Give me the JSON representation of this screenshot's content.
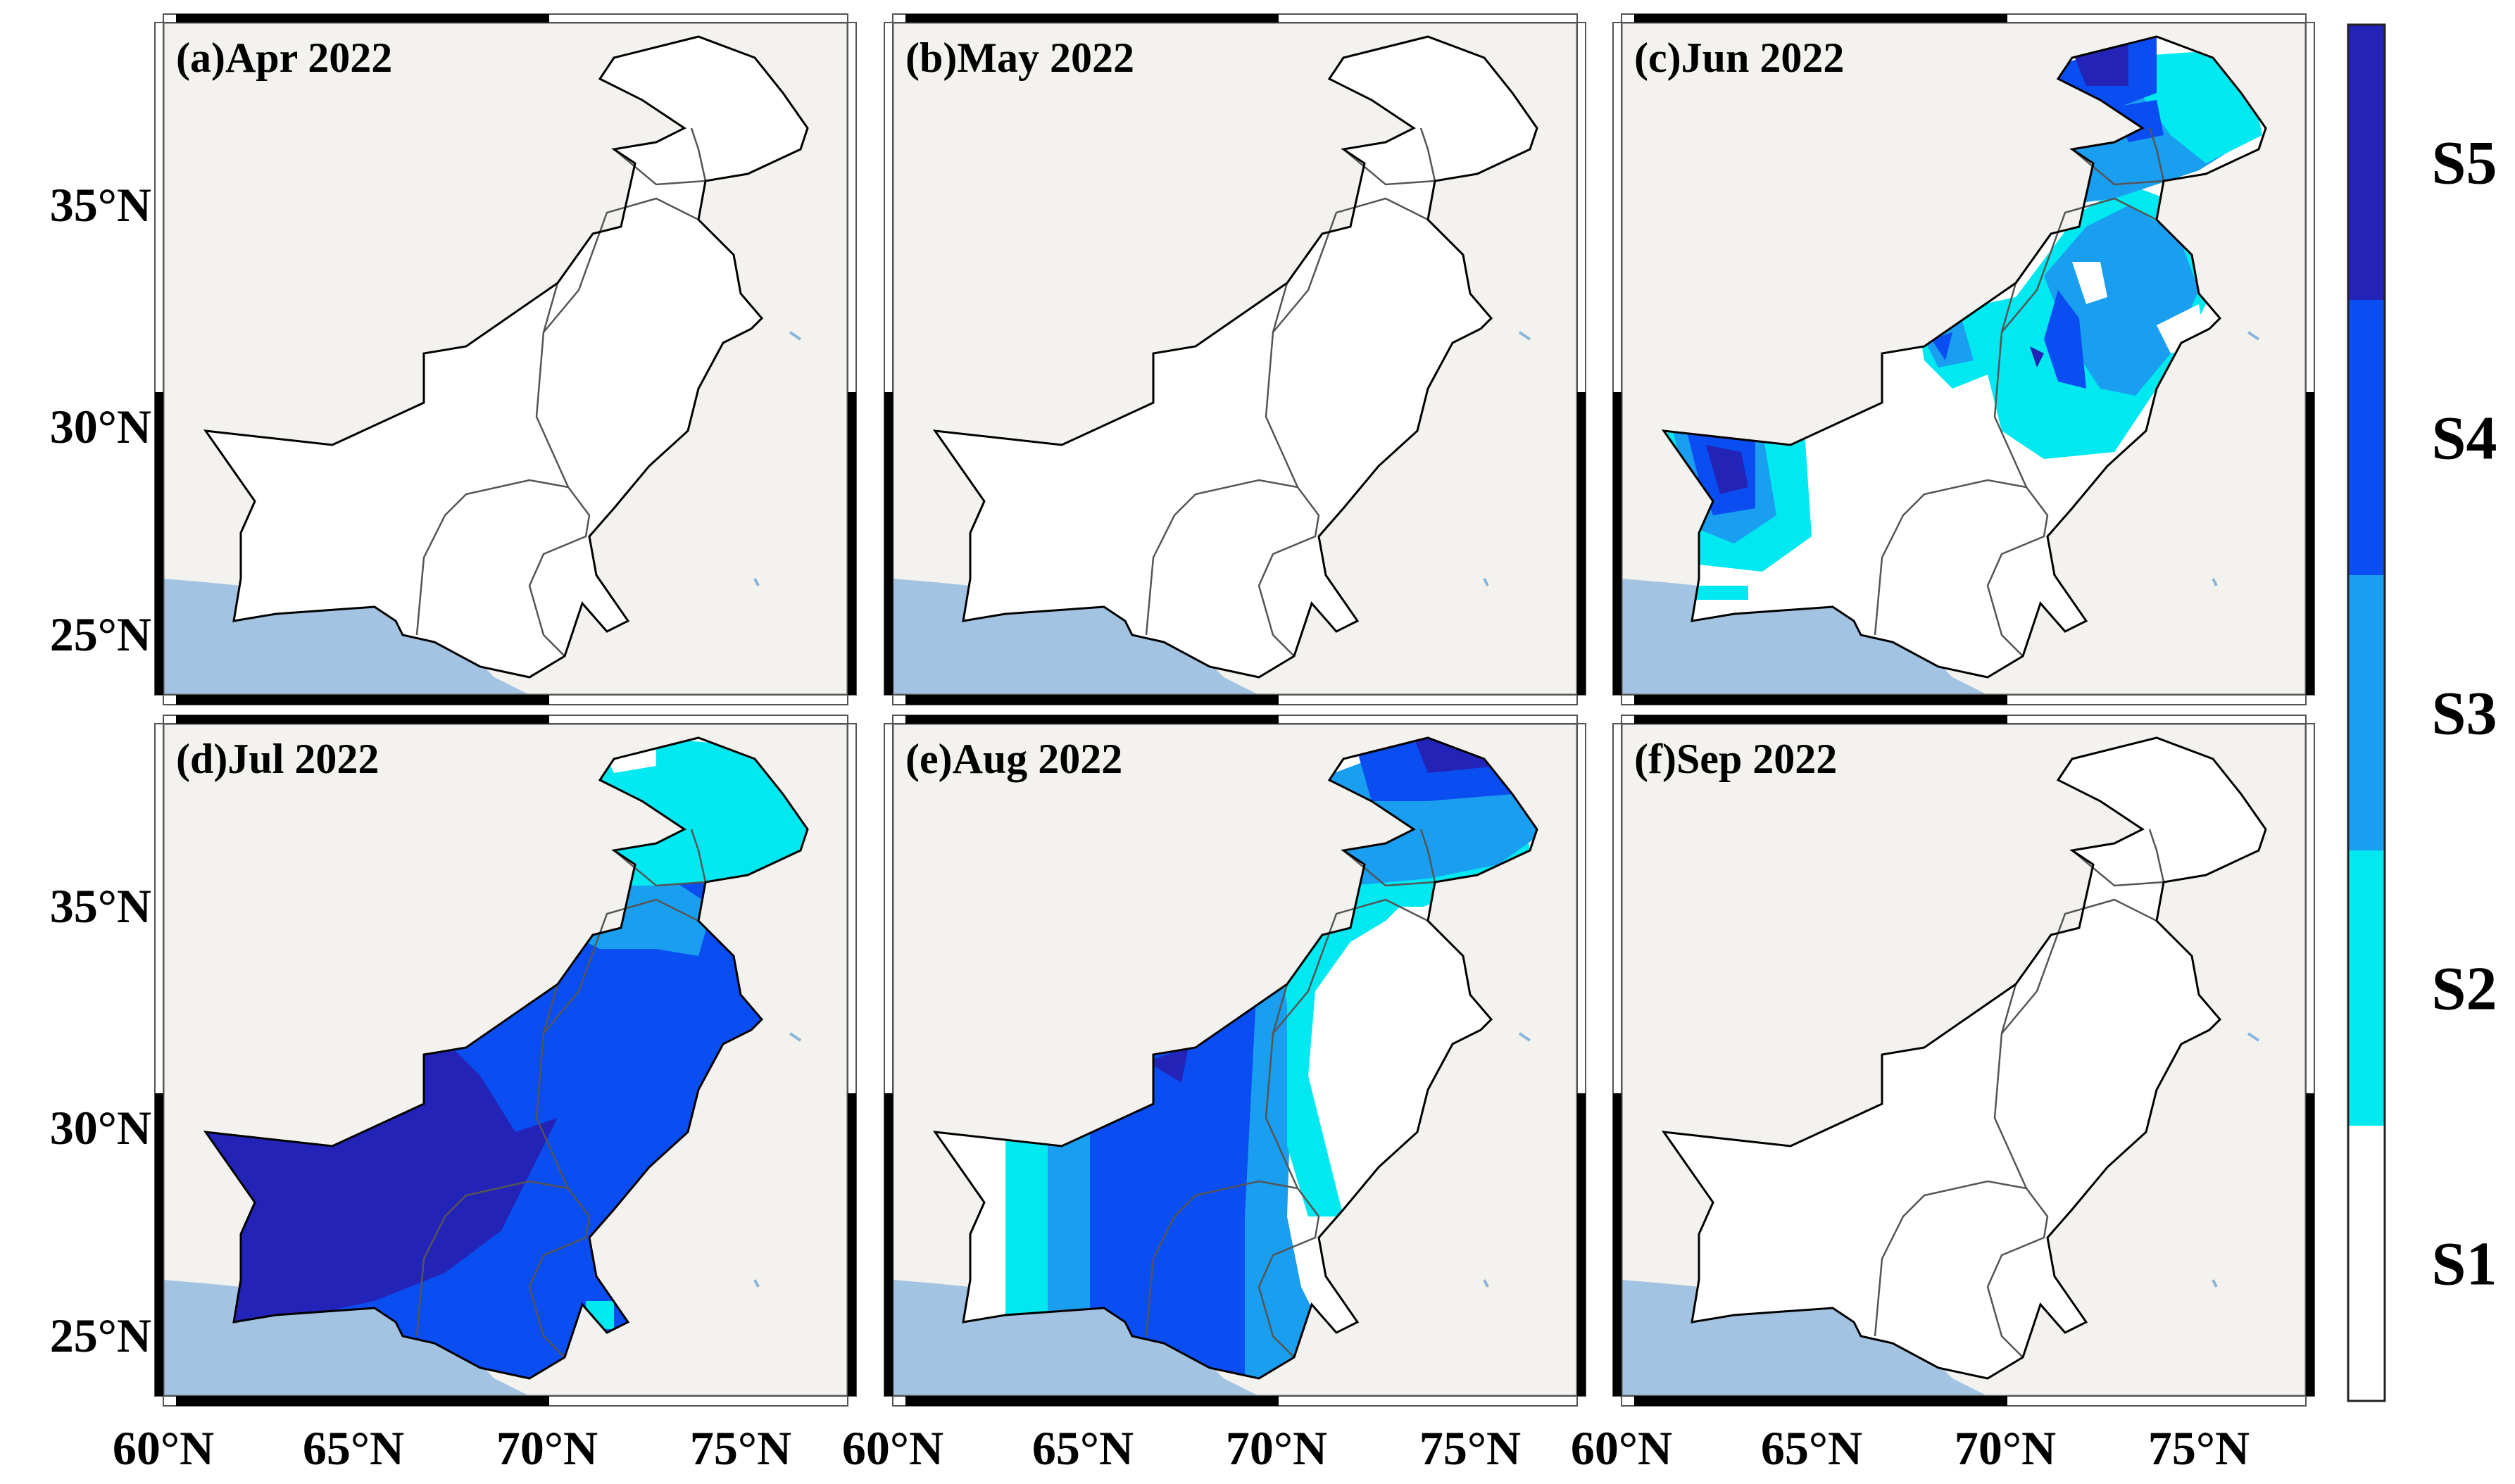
{
  "panels": [
    {
      "id": "a",
      "title": "(a)Apr 2022"
    },
    {
      "id": "b",
      "title": "(b)May 2022"
    },
    {
      "id": "c",
      "title": "(c)Jun 2022"
    },
    {
      "id": "d",
      "title": "(d)Jul 2022"
    },
    {
      "id": "e",
      "title": "(e)Aug 2022"
    },
    {
      "id": "f",
      "title": "(f)Sep 2022"
    }
  ],
  "y_axis_labels": [
    "35°N",
    "30°N",
    "25°N"
  ],
  "x_axis_labels": [
    "60°N",
    "65°N",
    "70°N",
    "75°N"
  ],
  "legend": {
    "classes": [
      {
        "label": "S5",
        "color": "#2323b8"
      },
      {
        "label": "S4",
        "color": "#0a4ef2"
      },
      {
        "label": "S3",
        "color": "#1a9ef0"
      },
      {
        "label": "S2",
        "color": "#00e8f0"
      },
      {
        "label": "S1",
        "color": "#ffffff"
      }
    ]
  },
  "colors": {
    "land": "#f3f2ef",
    "sea": "#a2c3e1",
    "country": "#ffffff"
  }
}
